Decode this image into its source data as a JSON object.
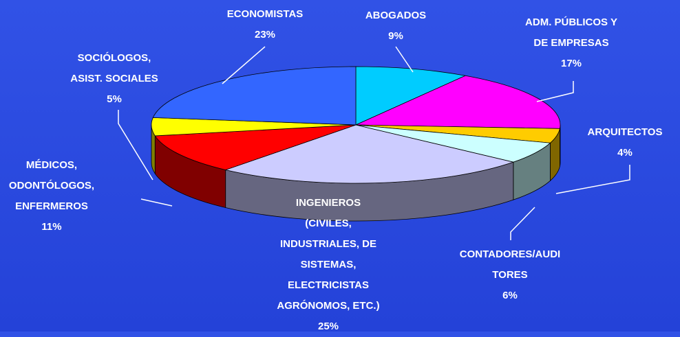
{
  "chart_data": {
    "type": "pie3d",
    "categories": [
      "ABOGADOS",
      "ADM. PÚBLICOS Y\nDE EMPRESAS",
      "ARQUITECTOS",
      "CONTADORES/AUDI\nTORES",
      "INGENIEROS\n(CIVILES,\nINDUSTRIALES, DE\nSISTEMAS,\nELECTRICISTAS\nAGRÓNOMOS, ETC.)",
      "MÉDICOS,\nODONTÓLOGOS,\nENFERMEROS",
      "SOCIÓLOGOS,\nASIST. SOCIALES",
      "ECONOMISTAS"
    ],
    "values": [
      9,
      17,
      4,
      6,
      25,
      11,
      5,
      23
    ],
    "value_labels": [
      "9%",
      "17%",
      "4%",
      "6%",
      "25%",
      "11%",
      "5%",
      "23%"
    ],
    "colors": [
      "#00ccff",
      "#ff00ff",
      "#ffcc00",
      "#ccffff",
      "#ccccff",
      "#ff0000",
      "#ffff00",
      "#3366ff"
    ]
  }
}
